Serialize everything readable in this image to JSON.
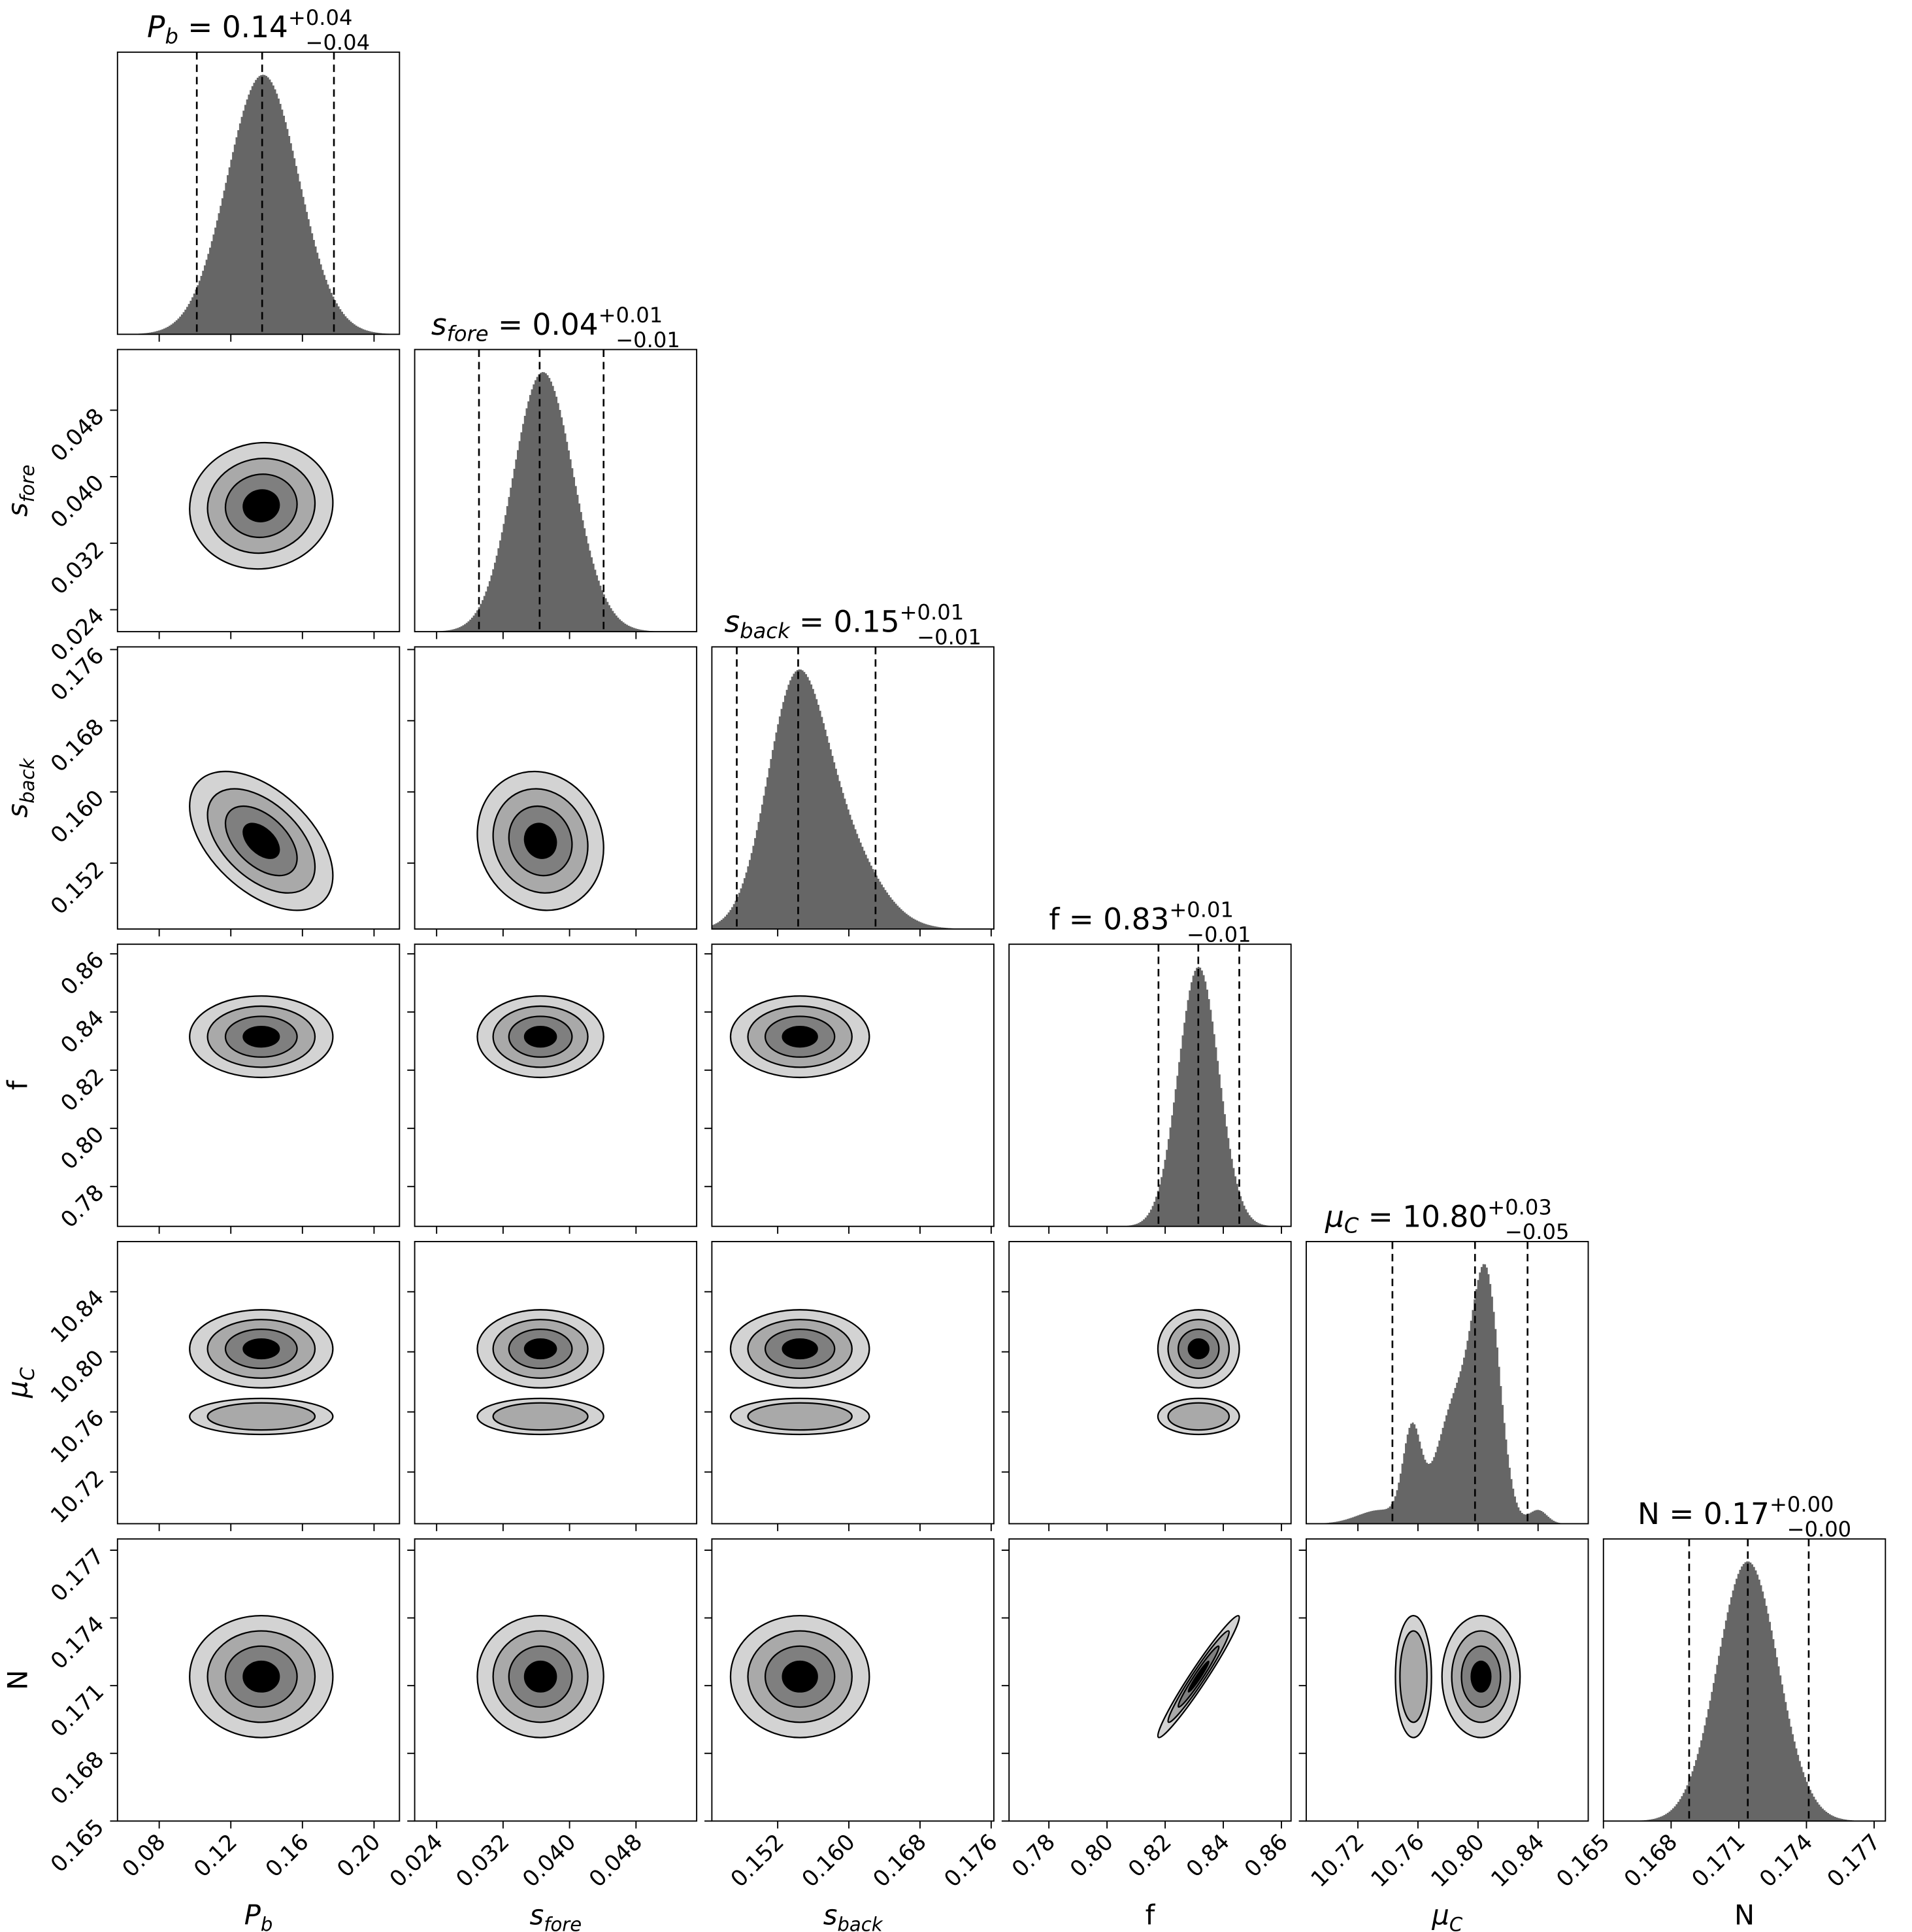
{
  "chart_data": {
    "type": "corner",
    "params": [
      {
        "label_base": "P",
        "label_sub": "b",
        "italic": true,
        "title": {
          "value": "0.14",
          "plus": "+0.04",
          "minus": "−0.04"
        },
        "range": [
          0.0567,
          0.2142
        ],
        "ticks": [
          "0.08",
          "0.12",
          "0.16",
          "0.20"
        ],
        "quantiles": [
          0.101,
          0.1375,
          0.1776
        ],
        "components": [
          {
            "mean": 0.138,
            "sd": 0.02,
            "w": 1
          }
        ],
        "blobs": [
          {
            "mean": 0.137,
            "sd": 0.02,
            "nlev": 4
          }
        ]
      },
      {
        "label_base": "s",
        "label_sub": "fore",
        "italic": true,
        "title": {
          "value": "0.04",
          "plus": "+0.01",
          "minus": "−0.01"
        },
        "range": [
          0.02136,
          0.0553
        ],
        "ticks": [
          "0.024",
          "0.032",
          "0.040",
          "0.048"
        ],
        "quantiles": [
          0.0291,
          0.0364,
          0.0441
        ],
        "components": [
          {
            "mean": 0.0362,
            "sd": 0.0034,
            "w": 1
          },
          {
            "mean": 0.039,
            "sd": 0.0035,
            "w": 0.35
          }
        ],
        "blobs": [
          {
            "mean": 0.0365,
            "sd": 0.0038,
            "nlev": 4
          }
        ]
      },
      {
        "label_base": "s",
        "label_sub": "back",
        "italic": true,
        "title": {
          "value": "0.15",
          "plus": "+0.01",
          "minus": "−0.01"
        },
        "range": [
          0.1446,
          0.1763
        ],
        "ticks": [
          "0.152",
          "0.160",
          "0.168",
          "0.176"
        ],
        "quantiles": [
          0.1474,
          0.1543,
          0.163
        ],
        "components": [
          {
            "mean": 0.1538,
            "sd": 0.0032,
            "w": 1
          },
          {
            "mean": 0.1585,
            "sd": 0.0042,
            "w": 0.45
          }
        ],
        "blobs": [
          {
            "mean": 0.1545,
            "sd": 0.0039,
            "nlev": 4
          }
        ]
      },
      {
        "label_base": "f",
        "label_sub": "",
        "italic": false,
        "title": {
          "value": "0.83",
          "plus": "+0.01",
          "minus": "−0.01"
        },
        "range": [
          0.7663,
          0.8633
        ],
        "ticks": [
          "0.78",
          "0.80",
          "0.82",
          "0.84",
          "0.86"
        ],
        "quantiles": [
          0.8177,
          0.8314,
          0.8455
        ],
        "components": [
          {
            "mean": 0.8315,
            "sd": 0.007,
            "w": 1
          }
        ],
        "blobs": [
          {
            "mean": 0.8315,
            "sd": 0.007,
            "nlev": 4
          }
        ]
      },
      {
        "label_base": "μ",
        "label_sub": "C",
        "italic": true,
        "title": {
          "value": "10.80",
          "plus": "+0.03",
          "minus": "−0.05"
        },
        "range": [
          10.6856,
          10.8734
        ],
        "ticks": [
          "10.72",
          "10.76",
          "10.80",
          "10.84"
        ],
        "quantiles": [
          10.743,
          10.798,
          10.833
        ],
        "components": [
          {
            "mean": 10.806,
            "sd": 0.009,
            "w": 0.8
          },
          {
            "mean": 10.786,
            "sd": 0.013,
            "w": 0.45
          },
          {
            "mean": 10.756,
            "sd": 0.006,
            "w": 0.32
          },
          {
            "mean": 10.735,
            "sd": 0.015,
            "w": 0.05
          },
          {
            "mean": 10.84,
            "sd": 0.006,
            "w": 0.05
          }
        ],
        "blobs": [
          {
            "mean": 10.802,
            "sd": 0.013,
            "nlev": 4
          },
          {
            "mean": 10.757,
            "sd": 0.006,
            "nlev": 2
          }
        ]
      },
      {
        "label_base": "N",
        "label_sub": "",
        "italic": false,
        "title": {
          "value": "0.17",
          "plus": "+0.00",
          "minus": "−0.00"
        },
        "range": [
          0.165,
          0.1775
        ],
        "ticks": [
          "0.165",
          "0.168",
          "0.171",
          "0.174",
          "0.177"
        ],
        "quantiles": [
          0.1688,
          0.1714,
          0.1741
        ],
        "components": [
          {
            "mean": 0.1714,
            "sd": 0.00135,
            "w": 1
          }
        ],
        "blobs": [
          {
            "mean": 0.1714,
            "sd": 0.00135,
            "nlev": 4
          }
        ]
      }
    ],
    "correlations": {
      "0-1": 0.05,
      "0-2": -0.5,
      "1-2": -0.1,
      "3-5": 0.97
    },
    "contour_sigma_levels": [
      2,
      1.5,
      1,
      0.5
    ],
    "contour_fills": [
      "#d3d3d3",
      "#a9a9a9",
      "#7f7f7f",
      "#000000"
    ],
    "hist_color": "#666666"
  }
}
